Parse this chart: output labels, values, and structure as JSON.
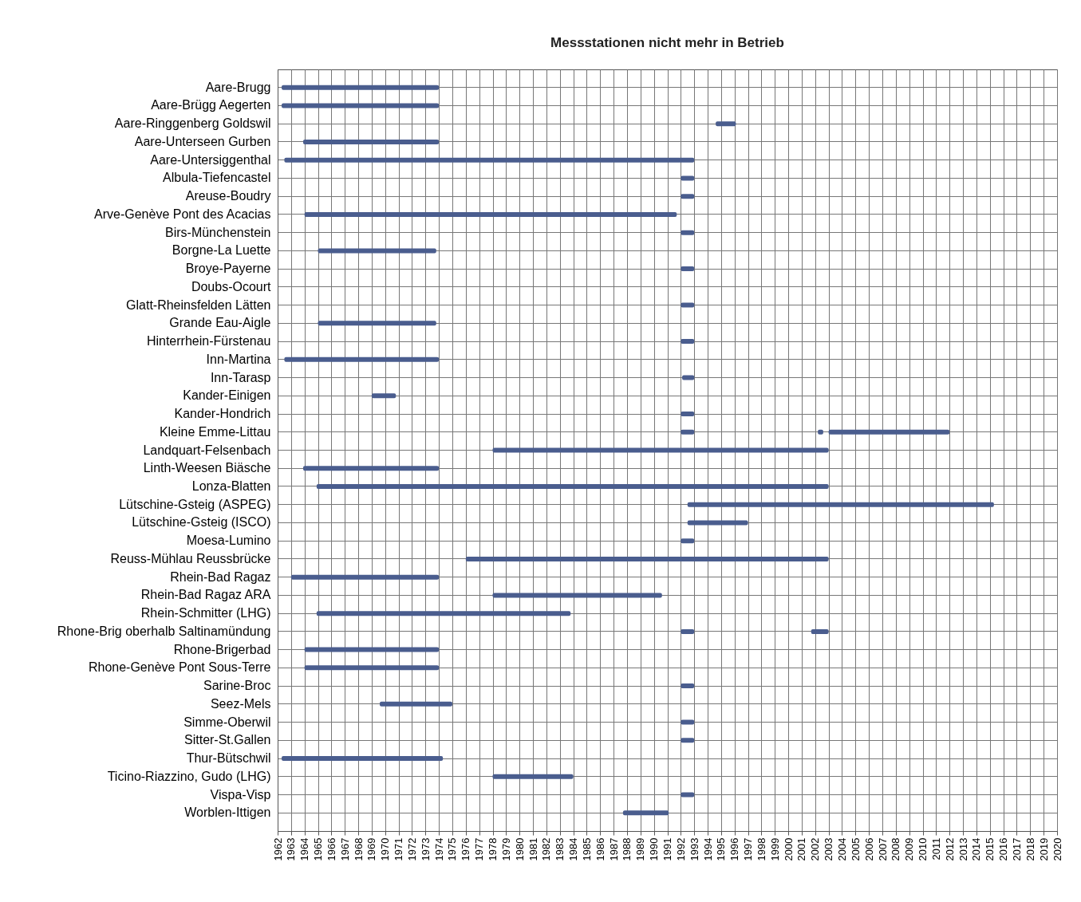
{
  "chart_data": {
    "type": "bar",
    "orientation": "horizontal",
    "title": "Messstationen nicht mehr in Betrieb",
    "categories": [
      "Aare-Brugg",
      "Aare-Brügg Aegerten",
      "Aare-Ringgenberg Goldswil",
      "Aare-Unterseen Gurben",
      "Aare-Untersiggenthal",
      "Albula-Tiefencastel",
      "Areuse-Boudry",
      "Arve-Genève Pont des Acacias",
      "Birs-Münchenstein",
      "Borgne-La Luette",
      "Broye-Payerne",
      "Doubs-Ocourt",
      "Glatt-Rheinsfelden Lätten",
      "Grande Eau-Aigle",
      "Hinterrhein-Fürstenau",
      "Inn-Martina",
      "Inn-Tarasp",
      "Kander-Einigen",
      "Kander-Hondrich",
      "Kleine Emme-Littau",
      "Landquart-Felsenbach",
      "Linth-Weesen Biäsche",
      "Lonza-Blatten",
      "Lütschine-Gsteig (ASPEG)",
      "Lütschine-Gsteig (ISCO)",
      "Moesa-Lumino",
      "Reuss-Mühlau Reussbrücke",
      "Rhein-Bad Ragaz",
      "Rhein-Bad Ragaz ARA",
      "Rhein-Schmitter (LHG)",
      "Rhone-Brig oberhalb Saltinamündung",
      "Rhone-Brigerbad",
      "Rhone-Genève Pont Sous-Terre",
      "Sarine-Broc",
      "Seez-Mels",
      "Simme-Oberwil",
      "Sitter-St.Gallen",
      "Thur-Bütschwil",
      "Ticino-Riazzino, Gudo (LHG)",
      "Vispa-Visp",
      "Worblen-Ittigen"
    ],
    "series": [
      {
        "color": "#4a5d8e",
        "base": [
          1962.3,
          1962.3,
          1994.6,
          1963.9,
          1962.5,
          1992,
          1992,
          1964,
          1992,
          1965,
          1992,
          null,
          1992,
          1965,
          1992,
          1962.5,
          1992.1,
          1969,
          1992,
          1992,
          1978,
          1963.9,
          1964.9,
          1992.5,
          1992.5,
          1992,
          1976,
          1963,
          1978,
          1964.9,
          1992,
          1964,
          1964,
          1992,
          1969.6,
          1992,
          1992,
          1962.3,
          1978,
          1992,
          1987.7
        ],
        "values": [
          11.7,
          11.7,
          1.5,
          10.1,
          30.5,
          1,
          1,
          27.7,
          1,
          8.8,
          1,
          null,
          1,
          8.8,
          1,
          11.5,
          0.9,
          1.8,
          1,
          1,
          25,
          10.1,
          38.1,
          22.8,
          4.5,
          1,
          27,
          11,
          12.6,
          18.9,
          1,
          10,
          10,
          1,
          5.4,
          1,
          1,
          12,
          6,
          1,
          3.4
        ]
      },
      {
        "color": "#4a5d8e",
        "base": [
          null,
          null,
          null,
          null,
          null,
          null,
          null,
          null,
          null,
          null,
          null,
          null,
          null,
          null,
          null,
          null,
          null,
          null,
          null,
          2003,
          null,
          null,
          null,
          null,
          null,
          null,
          null,
          null,
          null,
          null,
          2001.7,
          null,
          null,
          null,
          null,
          null,
          null,
          null,
          null,
          null,
          null
        ],
        "values": [
          null,
          null,
          null,
          null,
          null,
          null,
          null,
          null,
          null,
          null,
          null,
          null,
          null,
          null,
          null,
          null,
          null,
          null,
          null,
          9,
          null,
          null,
          null,
          null,
          null,
          null,
          null,
          null,
          null,
          null,
          1.3,
          null,
          null,
          null,
          null,
          null,
          null,
          null,
          null,
          null,
          null
        ]
      },
      {
        "color": "#4a5d8e",
        "base": [
          null,
          null,
          null,
          null,
          null,
          null,
          null,
          null,
          null,
          null,
          null,
          null,
          null,
          null,
          null,
          null,
          null,
          null,
          null,
          2002.2,
          null,
          null,
          null,
          null,
          null,
          null,
          null,
          null,
          null,
          null,
          null,
          null,
          null,
          null,
          null,
          null,
          null,
          null,
          null,
          null,
          null
        ],
        "values": [
          null,
          null,
          null,
          null,
          null,
          null,
          null,
          null,
          null,
          null,
          null,
          null,
          null,
          null,
          null,
          null,
          null,
          null,
          null,
          0.4,
          null,
          null,
          null,
          null,
          null,
          null,
          null,
          null,
          null,
          null,
          null,
          null,
          null,
          null,
          null,
          null,
          null,
          null,
          null,
          null,
          null
        ]
      }
    ],
    "xlim": [
      1962,
      2020
    ],
    "xticks": [
      1962,
      1963,
      1964,
      1965,
      1966,
      1967,
      1968,
      1969,
      1970,
      1971,
      1972,
      1973,
      1974,
      1975,
      1976,
      1977,
      1978,
      1979,
      1980,
      1981,
      1982,
      1983,
      1984,
      1985,
      1986,
      1987,
      1988,
      1989,
      1990,
      1991,
      1992,
      1993,
      1994,
      1995,
      1996,
      1997,
      1998,
      1999,
      2000,
      2001,
      2002,
      2003,
      2004,
      2005,
      2006,
      2007,
      2008,
      2009,
      2010,
      2011,
      2012,
      2013,
      2014,
      2015,
      2016,
      2017,
      2018,
      2019,
      2020
    ],
    "grid": true
  }
}
